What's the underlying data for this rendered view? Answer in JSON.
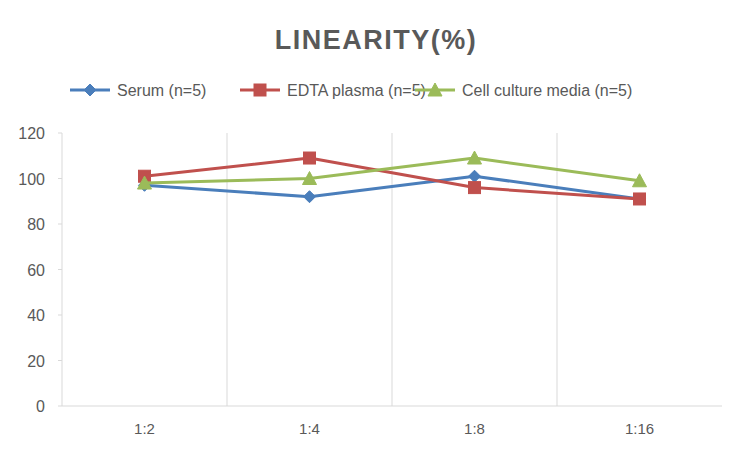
{
  "chart_data": {
    "type": "line",
    "title": "LINEARITY(%)",
    "categories": [
      "1:2",
      "1:4",
      "1:8",
      "1:16"
    ],
    "series": [
      {
        "name": "Serum (n=5)",
        "color": "#4a7ebb",
        "marker": "diamond",
        "values": [
          97,
          92,
          101,
          91
        ]
      },
      {
        "name": "EDTA plasma (n=5)",
        "color": "#c0504d",
        "marker": "square",
        "values": [
          101,
          109,
          96,
          91
        ]
      },
      {
        "name": "Cell culture media (n=5)",
        "color": "#9bbb59",
        "marker": "triangle",
        "values": [
          98,
          100,
          109,
          99
        ]
      }
    ],
    "ylim": [
      0,
      120
    ],
    "yticks": [
      0,
      20,
      40,
      60,
      80,
      100,
      120
    ],
    "grid": true,
    "legend": "top"
  }
}
